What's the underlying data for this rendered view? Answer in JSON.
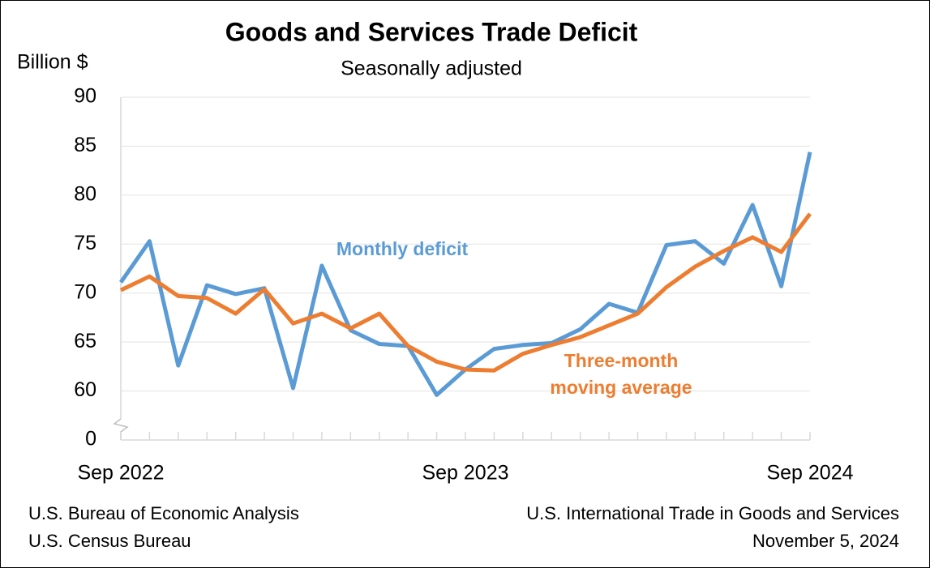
{
  "chart_data": {
    "type": "line",
    "title": "Goods and Services Trade Deficit",
    "subtitle": "Seasonally adjusted",
    "y_label": "Billion $",
    "categories": [
      "Sep 2022",
      null,
      null,
      null,
      null,
      null,
      null,
      null,
      null,
      null,
      null,
      null,
      "Sep 2023",
      null,
      null,
      null,
      null,
      null,
      null,
      null,
      null,
      null,
      null,
      null,
      "Sep 2024"
    ],
    "series": [
      {
        "name": "Monthly deficit",
        "color": "#5b9bd5",
        "values": [
          71.1,
          75.3,
          62.6,
          70.8,
          69.9,
          70.5,
          60.3,
          72.8,
          66.2,
          64.8,
          64.6,
          59.6,
          62.2,
          64.3,
          64.7,
          64.9,
          66.3,
          68.9,
          68.0,
          74.9,
          75.3,
          73.0,
          79.0,
          70.7,
          84.4
        ]
      },
      {
        "name": "Three-month moving average",
        "color": "#ed7d31",
        "values": [
          70.3,
          71.7,
          69.7,
          69.5,
          67.9,
          70.4,
          66.9,
          67.9,
          66.4,
          67.9,
          64.6,
          63.0,
          62.2,
          62.1,
          63.8,
          64.7,
          65.5,
          66.7,
          67.9,
          70.6,
          72.7,
          74.3,
          75.7,
          74.2,
          78.1
        ]
      }
    ],
    "ylim": [
      55,
      90
    ],
    "yticks": [
      0,
      60,
      65,
      70,
      75,
      80,
      85,
      90
    ],
    "axis_break": true,
    "grid": true,
    "source_left": [
      "U.S. Bureau of Economic Analysis",
      "U.S. Census Bureau"
    ],
    "source_right": [
      "U.S. International Trade in Goods and Services",
      "November 5, 2024"
    ]
  }
}
